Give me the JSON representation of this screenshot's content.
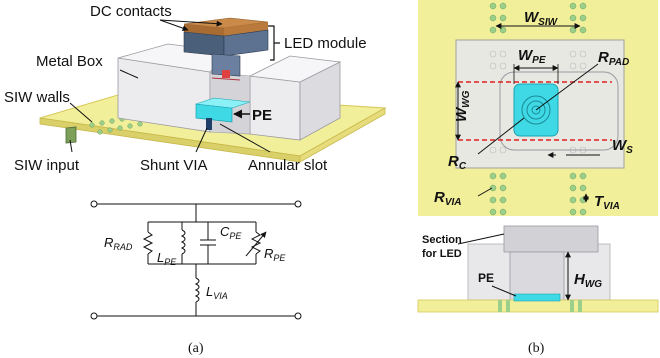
{
  "panel_a": {
    "labels": {
      "dc_contacts": "DC contacts",
      "led_module": "LED module",
      "metal_box": "Metal Box",
      "siw_walls": "SIW walls",
      "pe": "PE",
      "siw_input": "SIW input",
      "shunt_via": "Shunt VIA",
      "annular_slot": "Annular slot"
    },
    "circuit": {
      "r_rad": {
        "main": "R",
        "sub": "RAD"
      },
      "l_pe": {
        "main": "L",
        "sub": "PE"
      },
      "c_pe": {
        "main": "C",
        "sub": "PE"
      },
      "r_pe": {
        "main": "R",
        "sub": "PE"
      },
      "l_via": {
        "main": "L",
        "sub": "VIA"
      }
    },
    "caption": "(a)"
  },
  "panel_b": {
    "labels": {
      "w_siw": {
        "main": "W",
        "sub": "SIW"
      },
      "w_pe": {
        "main": "W",
        "sub": "PE"
      },
      "r_pad": {
        "main": "R",
        "sub": "PAD"
      },
      "w_wg": {
        "main": "W",
        "sub": "WG"
      },
      "w_s": {
        "main": "W",
        "sub": "S"
      },
      "r_c": {
        "main": "R",
        "sub": "C"
      },
      "r_via": {
        "main": "R",
        "sub": "VIA"
      },
      "t_via": {
        "main": "T",
        "sub": "VIA"
      },
      "section_line1": "Section",
      "section_line2": "for LED",
      "pe": "PE",
      "h_wg": {
        "main": "H",
        "sub": "WG"
      }
    },
    "caption": "(b)"
  },
  "colors": {
    "board": "#f2ef9a",
    "board_edge": "#d8c85a",
    "metal": "#e8e8ea",
    "cyan": "#3fd9e6",
    "copper": "#c98a4a",
    "led_blue": "#4a5f7a",
    "via_green": "#9ccf8a",
    "dashed_red": "#e02020"
  }
}
